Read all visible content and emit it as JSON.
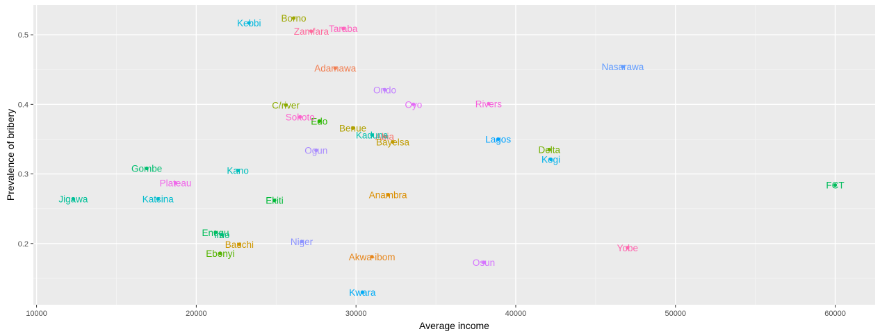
{
  "chart_data": {
    "type": "scatter",
    "xlabel": "Average income",
    "ylabel": "Prevalence of bribery",
    "xlim": [
      9800,
      62500
    ],
    "ylim": [
      0.112,
      0.543
    ],
    "x_ticks": [
      10000,
      20000,
      30000,
      40000,
      50000,
      60000
    ],
    "x_tick_labels": [
      "10000",
      "20000",
      "30000",
      "40000",
      "50000",
      "60000"
    ],
    "y_ticks": [
      0.2,
      0.3,
      0.4,
      0.5
    ],
    "y_tick_labels": [
      "0.2",
      "0.3",
      "0.4",
      "0.5"
    ],
    "grid": true,
    "legend": "none",
    "points": [
      {
        "label": "Abia",
        "x": 31800,
        "y": 0.354,
        "color": "#F8766D"
      },
      {
        "label": "Adamawa",
        "x": 28700,
        "y": 0.452,
        "color": "#F17D50"
      },
      {
        "label": "Akwa-ibom",
        "x": 31000,
        "y": 0.181,
        "color": "#E7861B"
      },
      {
        "label": "Anambra",
        "x": 32000,
        "y": 0.27,
        "color": "#DB8E00"
      },
      {
        "label": "Bauchi",
        "x": 22700,
        "y": 0.199,
        "color": "#CE9600"
      },
      {
        "label": "Bayelsa",
        "x": 32300,
        "y": 0.346,
        "color": "#C09B00"
      },
      {
        "label": "Benue",
        "x": 29800,
        "y": 0.366,
        "color": "#B0A000"
      },
      {
        "label": "Borno",
        "x": 26100,
        "y": 0.524,
        "color": "#9EA700"
      },
      {
        "label": "C/river",
        "x": 25600,
        "y": 0.399,
        "color": "#8BAB00"
      },
      {
        "label": "Delta",
        "x": 42100,
        "y": 0.335,
        "color": "#72B000"
      },
      {
        "label": "Ebonyi",
        "x": 21500,
        "y": 0.186,
        "color": "#55B400"
      },
      {
        "label": "Edo",
        "x": 27700,
        "y": 0.376,
        "color": "#2AB700"
      },
      {
        "label": "Ekiti",
        "x": 24900,
        "y": 0.262,
        "color": "#00BA38"
      },
      {
        "label": "Enugu",
        "x": 21200,
        "y": 0.216,
        "color": "#00BC59"
      },
      {
        "label": "Gombe",
        "x": 16900,
        "y": 0.308,
        "color": "#00BE70"
      },
      {
        "label": "Imo",
        "x": 21600,
        "y": 0.213,
        "color": "#00BF85"
      },
      {
        "label": "Jigawa",
        "x": 12300,
        "y": 0.264,
        "color": "#00C098"
      },
      {
        "label": "Kaduna",
        "x": 31000,
        "y": 0.356,
        "color": "#00C0AB"
      },
      {
        "label": "Kano",
        "x": 22600,
        "y": 0.305,
        "color": "#00BFBC"
      },
      {
        "label": "Katsina",
        "x": 17600,
        "y": 0.264,
        "color": "#00BCCD"
      },
      {
        "label": "Kebbi",
        "x": 23300,
        "y": 0.517,
        "color": "#00B8DD"
      },
      {
        "label": "Kogi",
        "x": 42200,
        "y": 0.321,
        "color": "#00B2EA"
      },
      {
        "label": "Kwara",
        "x": 30400,
        "y": 0.13,
        "color": "#00ABF6"
      },
      {
        "label": "Lagos",
        "x": 38900,
        "y": 0.35,
        "color": "#00A3FF"
      },
      {
        "label": "Nasarawa",
        "x": 46700,
        "y": 0.454,
        "color": "#619CFF"
      },
      {
        "label": "Niger",
        "x": 26600,
        "y": 0.203,
        "color": "#8C93FF"
      },
      {
        "label": "Ogun",
        "x": 27500,
        "y": 0.334,
        "color": "#A98BFE"
      },
      {
        "label": "Ondo",
        "x": 31800,
        "y": 0.421,
        "color": "#C280FF"
      },
      {
        "label": "Osun",
        "x": 38000,
        "y": 0.173,
        "color": "#D575FE"
      },
      {
        "label": "Oyo",
        "x": 33600,
        "y": 0.4,
        "color": "#E56CF7"
      },
      {
        "label": "Plateau",
        "x": 18700,
        "y": 0.287,
        "color": "#F066EA"
      },
      {
        "label": "Rivers",
        "x": 38300,
        "y": 0.401,
        "color": "#F863DC"
      },
      {
        "label": "Sokoto",
        "x": 26500,
        "y": 0.382,
        "color": "#FD61CD"
      },
      {
        "label": "Taraba",
        "x": 29200,
        "y": 0.509,
        "color": "#FF62BE"
      },
      {
        "label": "Yobe",
        "x": 47000,
        "y": 0.194,
        "color": "#FF65AE"
      },
      {
        "label": "Zamfara",
        "x": 27200,
        "y": 0.505,
        "color": "#FF699C"
      },
      {
        "label": "FCT",
        "x": 60000,
        "y": 0.284,
        "color": "#00BD5C"
      }
    ]
  }
}
